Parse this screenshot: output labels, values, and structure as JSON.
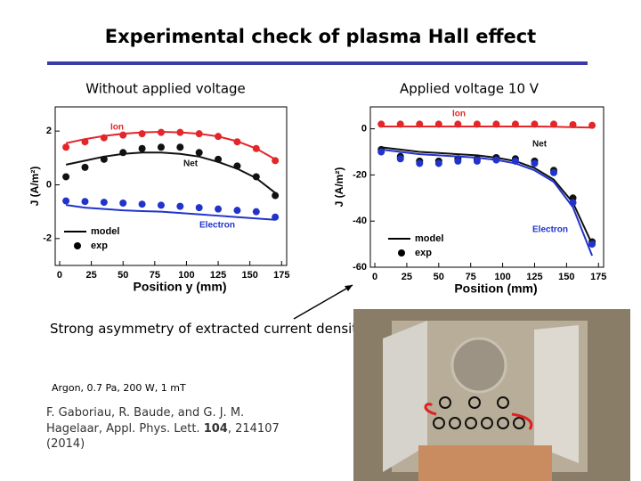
{
  "header": {
    "title": "Experimental check of plasma Hall effect"
  },
  "panels": {
    "left_label": "Without applied voltage",
    "right_label": "Applied voltage 10 V"
  },
  "chart_data": [
    {
      "type": "scatter",
      "x_label": "Position y (mm)",
      "y_label": "J (A/m²)",
      "xlim": [
        -3.5,
        179
      ],
      "ylim": [
        -3,
        2.9
      ],
      "xticks": [
        0,
        25,
        50,
        75,
        100,
        125,
        150,
        175
      ],
      "yticks": [
        -2,
        0,
        2
      ],
      "legend": [
        "model",
        "exp"
      ],
      "x": [
        5,
        20,
        35,
        50,
        65,
        80,
        95,
        110,
        125,
        140,
        155,
        170
      ],
      "series": [
        {
          "name": "Ion",
          "color": "#e3262a",
          "values": [
            1.4,
            1.6,
            1.75,
            1.85,
            1.9,
            1.95,
            1.95,
            1.9,
            1.8,
            1.6,
            1.35,
            0.9
          ],
          "model": [
            1.55,
            1.7,
            1.82,
            1.9,
            1.95,
            1.97,
            1.95,
            1.9,
            1.8,
            1.62,
            1.35,
            0.95
          ]
        },
        {
          "name": "Net",
          "color": "#111111",
          "values": [
            0.3,
            0.65,
            0.95,
            1.2,
            1.35,
            1.4,
            1.4,
            1.2,
            0.95,
            0.7,
            0.3,
            -0.4
          ],
          "model": [
            0.75,
            0.9,
            1.05,
            1.15,
            1.2,
            1.2,
            1.15,
            1.05,
            0.85,
            0.6,
            0.25,
            -0.3
          ]
        },
        {
          "name": "Electron",
          "color": "#2233cc",
          "values": [
            -0.6,
            -0.62,
            -0.65,
            -0.68,
            -0.72,
            -0.76,
            -0.8,
            -0.85,
            -0.9,
            -0.95,
            -1.0,
            -1.2
          ],
          "model": [
            -0.75,
            -0.85,
            -0.9,
            -0.95,
            -0.98,
            -1.0,
            -1.05,
            -1.1,
            -1.15,
            -1.2,
            -1.25,
            -1.3
          ]
        }
      ]
    },
    {
      "type": "scatter",
      "x_label": "Position (mm)",
      "y_label": "J (A/m²)",
      "xlim": [
        -3.5,
        179
      ],
      "ylim": [
        -60,
        9.5
      ],
      "xticks": [
        0,
        25,
        50,
        75,
        100,
        125,
        150,
        175
      ],
      "yticks": [
        -60,
        -40,
        -20,
        0
      ],
      "legend": [
        "model",
        "exp"
      ],
      "x": [
        5,
        20,
        35,
        50,
        65,
        80,
        95,
        110,
        125,
        140,
        155,
        170
      ],
      "series": [
        {
          "name": "Ion",
          "color": "#e3262a",
          "values": [
            2,
            2,
            2,
            2,
            2,
            2,
            2,
            2,
            2,
            2,
            1.8,
            1.5
          ],
          "model": [
            1,
            1,
            1,
            1,
            1,
            1,
            1,
            1,
            1,
            0.9,
            0.7,
            0.5
          ]
        },
        {
          "name": "Net",
          "color": "#111111",
          "values": [
            -9,
            -12,
            -14,
            -14,
            -13,
            -13,
            -12.5,
            -13,
            -14,
            -18,
            -30,
            -49
          ],
          "model": [
            -8,
            -9,
            -10,
            -10.5,
            -11,
            -11.5,
            -12.5,
            -14,
            -17,
            -22,
            -32,
            -50
          ]
        },
        {
          "name": "Electron",
          "color": "#2233cc",
          "values": [
            -10,
            -13,
            -15,
            -15,
            -14,
            -14,
            -13.5,
            -14,
            -15,
            -19,
            -32,
            -50
          ],
          "model": [
            -9,
            -10,
            -11,
            -11.5,
            -12,
            -12.5,
            -13.5,
            -15,
            -18,
            -23,
            -34,
            -55
          ]
        }
      ]
    }
  ],
  "notes": {
    "conclusion": "Strong asymmetry of extracted current density profile!",
    "conditions": "Argon, 0.7 Pa, 200 W, 1 mT",
    "citation": {
      "authors": "F. Gaboriau, R. Baude, and G. J. M. Hagelaar, Appl. Phys. Lett.",
      "volume": "104",
      "rest": ", 214107 (2014)"
    }
  }
}
